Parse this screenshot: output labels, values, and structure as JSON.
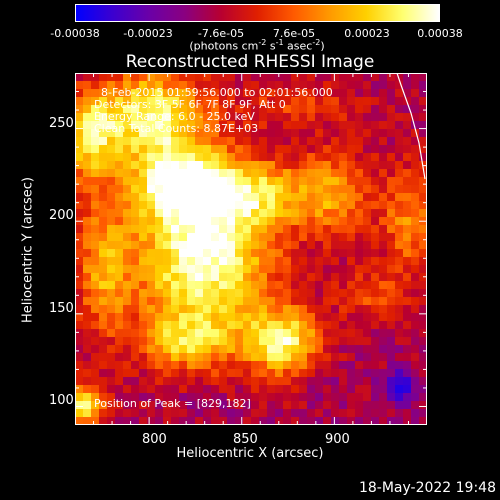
{
  "colorbar": {
    "ticks": [
      "-0.00038",
      "-0.00023",
      "-7.6e-05",
      "7.6e-05",
      "0.00023",
      "0.00038"
    ],
    "unit_main": "(photons cm",
    "unit_exp1": "-2",
    "unit_s": " s",
    "unit_exp2": "-1",
    "unit_asec": " asec",
    "unit_exp3": "-2",
    "unit_close": ")",
    "stops": [
      "#0000ff",
      "#3b00d0",
      "#6a00a8",
      "#8a0080",
      "#b80030",
      "#e02000",
      "#ff5a00",
      "#ff9a00",
      "#ffd000",
      "#ffff70",
      "#ffffff"
    ]
  },
  "title": "Reconstructed RHESSI Image",
  "annotations": {
    "time_range": "8-Feb-2015 01:59:56.000 to 02:01:56.000",
    "detectors": "Detectors: 3F 5F 6F 7F 8F 9F, Att 0",
    "energy_range": "Energy Range: 6.0 - 25.0 keV",
    "clean": "Clean    Total Counts: 8.87E+03",
    "peak": "Position of Peak = [829,182]"
  },
  "timestamp": "18-May-2022 19:48",
  "chart_data": {
    "type": "heatmap",
    "title": "Reconstructed RHESSI Image",
    "xlabel": "Heliocentric X (arcsec)",
    "ylabel": "Heliocentric Y (arcsec)",
    "xlim": [
      760,
      950
    ],
    "ylim": [
      90,
      280
    ],
    "x_ticks": [
      800,
      850,
      900
    ],
    "y_ticks": [
      100,
      150,
      200,
      250
    ],
    "colorbar_range": [
      -0.00038,
      0.00038
    ],
    "peak_position": [
      829,
      182
    ],
    "blobs": [
      {
        "x": 829,
        "y": 182,
        "sx": 26,
        "sy": 32,
        "v": 1.0
      },
      {
        "x": 815,
        "y": 222,
        "sx": 18,
        "sy": 14,
        "v": 0.75
      },
      {
        "x": 800,
        "y": 258,
        "sx": 20,
        "sy": 16,
        "v": 0.85
      },
      {
        "x": 858,
        "y": 215,
        "sx": 20,
        "sy": 12,
        "v": 0.55
      },
      {
        "x": 872,
        "y": 135,
        "sx": 14,
        "sy": 12,
        "v": 0.85
      },
      {
        "x": 820,
        "y": 135,
        "sx": 16,
        "sy": 10,
        "v": 0.5
      },
      {
        "x": 768,
        "y": 245,
        "sx": 10,
        "sy": 16,
        "v": 0.7
      },
      {
        "x": 775,
        "y": 175,
        "sx": 10,
        "sy": 26,
        "v": 0.5
      },
      {
        "x": 900,
        "y": 215,
        "sx": 14,
        "sy": 16,
        "v": 0.5
      },
      {
        "x": 940,
        "y": 200,
        "sx": 10,
        "sy": 20,
        "v": 0.45
      },
      {
        "x": 880,
        "y": 262,
        "sx": 24,
        "sy": 8,
        "v": 0.25
      },
      {
        "x": 765,
        "y": 100,
        "sx": 8,
        "sy": 8,
        "v": 0.8
      },
      {
        "x": 920,
        "y": 160,
        "sx": 12,
        "sy": 10,
        "v": 0.3
      },
      {
        "x": 935,
        "y": 110,
        "sx": 6,
        "sy": 6,
        "v": -0.9
      },
      {
        "x": 830,
        "y": 100,
        "sx": 14,
        "sy": 8,
        "v": -0.1
      },
      {
        "x": 900,
        "y": 110,
        "sx": 14,
        "sy": 14,
        "v": -0.05
      }
    ]
  }
}
